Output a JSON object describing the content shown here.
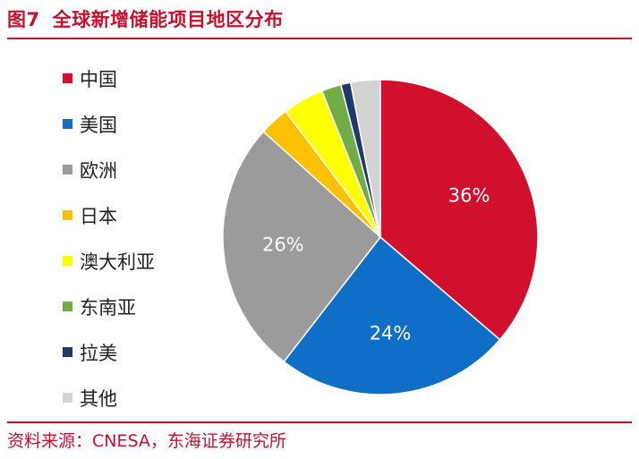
{
  "figure": {
    "number": "图7",
    "title": "全球新增储能项目地区分布",
    "source": "资料来源：CNESA，东海证券研究所"
  },
  "chart_data": {
    "type": "pie",
    "legend_position": "left",
    "slices": [
      {
        "name": "中国",
        "value": 36,
        "label": "36%",
        "color": "#d0102c"
      },
      {
        "name": "美国",
        "value": 24,
        "label": "24%",
        "color": "#0f6fc6"
      },
      {
        "name": "欧洲",
        "value": 26,
        "label": "26%",
        "color": "#9b9b9b"
      },
      {
        "name": "日本",
        "value": 3,
        "label": "",
        "color": "#ffc000"
      },
      {
        "name": "澳大利亚",
        "value": 4.2,
        "label": "",
        "color": "#ffff00"
      },
      {
        "name": "东南亚",
        "value": 2,
        "label": "",
        "color": "#70ad47"
      },
      {
        "name": "拉美",
        "value": 1,
        "label": "",
        "color": "#1f3a6e"
      },
      {
        "name": "其他",
        "value": 3,
        "label": "",
        "color": "#d3d3d3"
      }
    ]
  }
}
